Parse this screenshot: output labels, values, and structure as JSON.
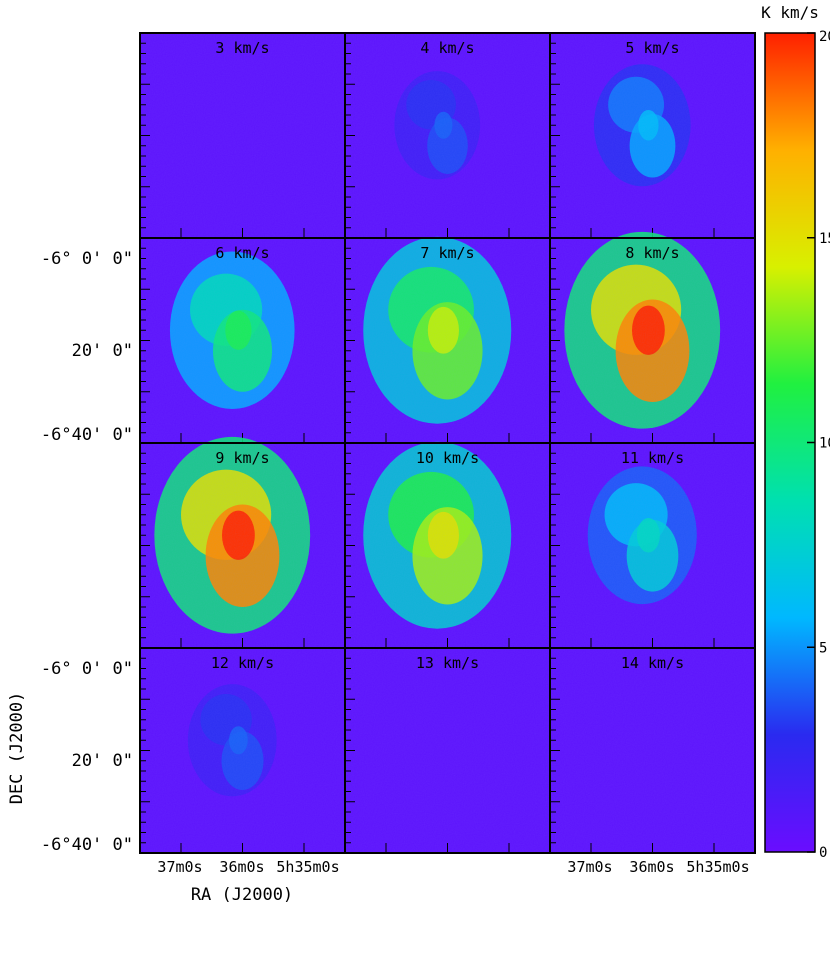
{
  "chart_data": {
    "type": "heatmap",
    "description_free": true,
    "colorbar": {
      "unit_label": "K km/s",
      "range": [
        0,
        20
      ],
      "tick_labels": [
        "0",
        "5",
        "10",
        "15",
        "20"
      ],
      "tick_values": [
        0,
        5,
        10,
        15,
        20
      ],
      "colormap": [
        "#6a0dff",
        "#2a2af0",
        "#00b8ff",
        "#00e0b0",
        "#20f040",
        "#d8f000",
        "#ffb000",
        "#ff2000"
      ]
    },
    "panels": [
      {
        "label": "3 km/s",
        "intensity": 0.02,
        "peak": 3
      },
      {
        "label": "4 km/s",
        "intensity": 0.05,
        "peak": 4
      },
      {
        "label": "5 km/s",
        "intensity": 0.12,
        "peak": 6
      },
      {
        "label": "6 km/s",
        "intensity": 0.3,
        "peak": 11
      },
      {
        "label": "7 km/s",
        "intensity": 0.45,
        "peak": 14
      },
      {
        "label": "8 km/s",
        "intensity": 0.6,
        "peak": 20
      },
      {
        "label": "9 km/s",
        "intensity": 0.65,
        "peak": 20
      },
      {
        "label": "10 km/s",
        "intensity": 0.45,
        "peak": 15
      },
      {
        "label": "11 km/s",
        "intensity": 0.2,
        "peak": 8
      },
      {
        "label": "12 km/s",
        "intensity": 0.07,
        "peak": 4
      },
      {
        "label": "13 km/s",
        "intensity": 0.02,
        "peak": 2
      },
      {
        "label": "14 km/s",
        "intensity": 0.01,
        "peak": 1
      }
    ],
    "y_tick_labels": [
      "-6° 0' 0\"",
      "20' 0\"",
      "-6°40' 0\""
    ],
    "x_tick_labels": [
      "37m0s",
      "36m0s",
      "5h35m0s"
    ],
    "xlabel": "RA (J2000)",
    "ylabel": "DEC (J2000)",
    "grid": false
  }
}
